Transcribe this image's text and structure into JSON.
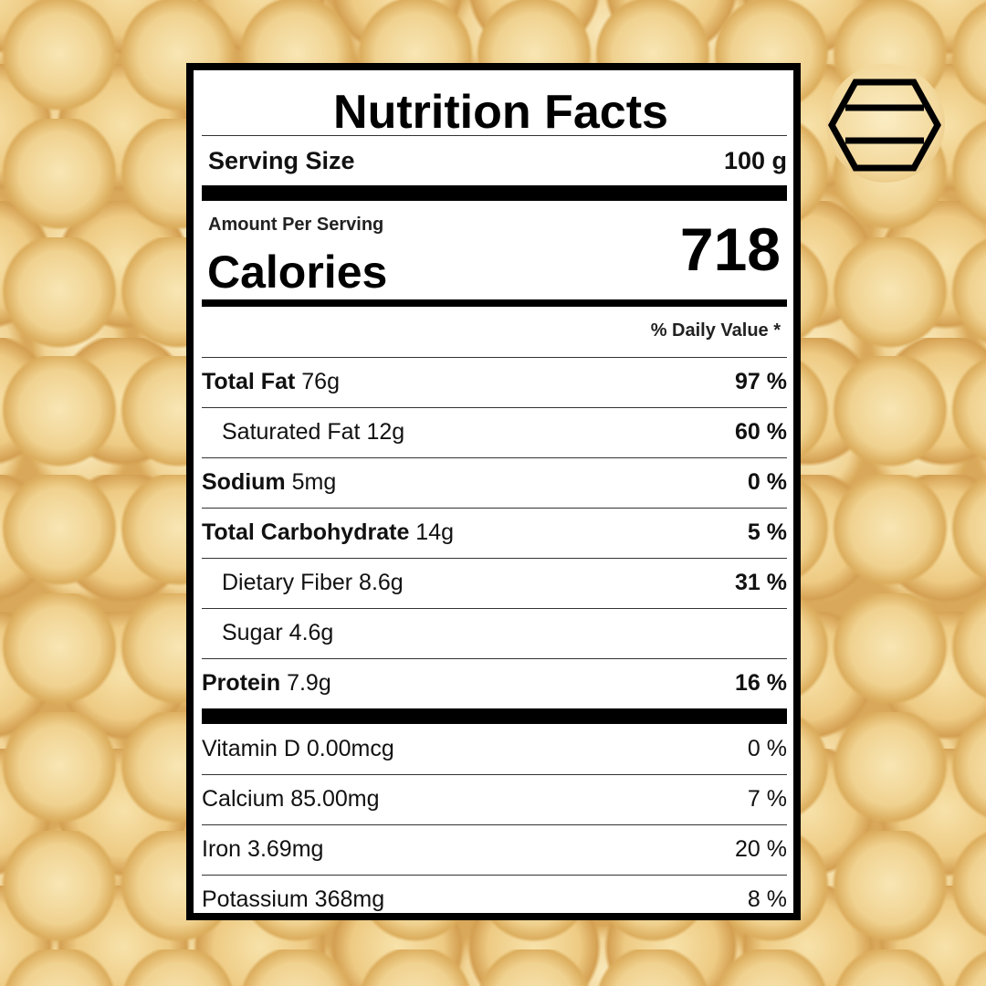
{
  "logo": {
    "icon": "hexagon-stripes-logo"
  },
  "label": {
    "title": "Nutrition Facts",
    "serving_size_label": "Serving Size",
    "serving_size_value": "100 g",
    "amount_per_serving": "Amount Per Serving",
    "calories_label": "Calories",
    "calories_value": "718",
    "daily_value_header": "% Daily Value *",
    "nutrients": [
      {
        "name": "Total Fat",
        "amount": "76g",
        "dv": "97 %"
      },
      {
        "name": "Saturated Fat",
        "amount": "12g",
        "dv": "60 %"
      },
      {
        "name": "Sodium",
        "amount": "5mg",
        "dv": "0 %"
      },
      {
        "name": "Total Carbohydrate",
        "amount": "14g",
        "dv": "5 %"
      },
      {
        "name": "Dietary Fiber",
        "amount": "8.6g",
        "dv": "31 %"
      },
      {
        "name": "Sugar",
        "amount": "4.6g",
        "dv": ""
      },
      {
        "name": "Protein",
        "amount": "7.9g",
        "dv": "16 %"
      }
    ],
    "vitamins": [
      {
        "name": "Vitamin D",
        "amount": "0.00mcg",
        "dv": "0 %"
      },
      {
        "name": "Calcium",
        "amount": "85.00mg",
        "dv": "7 %"
      },
      {
        "name": "Iron",
        "amount": "3.69mg",
        "dv": "20 %"
      },
      {
        "name": "Potassium",
        "amount": "368mg",
        "dv": "8 %"
      }
    ]
  }
}
